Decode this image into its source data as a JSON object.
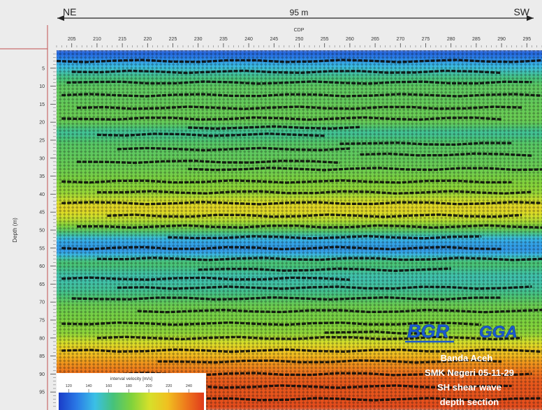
{
  "header": {
    "direction_left": "NE",
    "direction_right": "SW",
    "scale_length": "95 m"
  },
  "chart_data": {
    "type": "heatmap",
    "title": "",
    "xlabel": "CDP",
    "ylabel": "Depth (m)",
    "x_ticks": [
      205,
      210,
      215,
      220,
      225,
      230,
      235,
      240,
      245,
      250,
      255,
      260,
      265,
      270,
      275,
      280,
      285,
      290,
      295
    ],
    "x_range": [
      202,
      298
    ],
    "y_ticks": [
      5,
      10,
      15,
      20,
      25,
      30,
      35,
      40,
      45,
      50,
      55,
      60,
      65,
      70,
      75,
      80,
      85,
      90,
      95
    ],
    "y_range": [
      0,
      100
    ],
    "grid": false,
    "colorbar": {
      "label": "interval velocity [m/s]",
      "ticks": [
        120,
        140,
        160,
        180,
        200,
        220,
        240
      ],
      "range": [
        110,
        255
      ],
      "stops": [
        "#1a3cc8",
        "#2a7ae6",
        "#3bc0e6",
        "#46c27a",
        "#7fd23c",
        "#d6e02a",
        "#f0c020",
        "#ee7a1c",
        "#e03a1c"
      ]
    },
    "velocity_profile": [
      {
        "depth": 0,
        "velocity": 118
      },
      {
        "depth": 2,
        "velocity": 128
      },
      {
        "depth": 4,
        "velocity": 142
      },
      {
        "depth": 7,
        "velocity": 160
      },
      {
        "depth": 10,
        "velocity": 172
      },
      {
        "depth": 20,
        "velocity": 176
      },
      {
        "depth": 23,
        "velocity": 158
      },
      {
        "depth": 26,
        "velocity": 170
      },
      {
        "depth": 33,
        "velocity": 176
      },
      {
        "depth": 40,
        "velocity": 188
      },
      {
        "depth": 44,
        "velocity": 210
      },
      {
        "depth": 47,
        "velocity": 196
      },
      {
        "depth": 50,
        "velocity": 174
      },
      {
        "depth": 53,
        "velocity": 140
      },
      {
        "depth": 56,
        "velocity": 135
      },
      {
        "depth": 59,
        "velocity": 168
      },
      {
        "depth": 63,
        "velocity": 155
      },
      {
        "depth": 67,
        "velocity": 160
      },
      {
        "depth": 71,
        "velocity": 176
      },
      {
        "depth": 79,
        "velocity": 186
      },
      {
        "depth": 83,
        "velocity": 212
      },
      {
        "depth": 87,
        "velocity": 230
      },
      {
        "depth": 92,
        "velocity": 246
      },
      {
        "depth": 100,
        "velocity": 250
      }
    ],
    "reflectors": [
      {
        "depth": 3,
        "x0": 202,
        "x1": 298
      },
      {
        "depth": 6,
        "x0": 205,
        "x1": 290
      },
      {
        "depth": 9,
        "x0": 204,
        "x1": 296
      },
      {
        "depth": 12.5,
        "x0": 203,
        "x1": 298
      },
      {
        "depth": 16,
        "x0": 206,
        "x1": 294
      },
      {
        "depth": 19,
        "x0": 203,
        "x1": 290
      },
      {
        "depth": 21.5,
        "x0": 228,
        "x1": 262
      },
      {
        "depth": 23.5,
        "x0": 210,
        "x1": 255
      },
      {
        "depth": 26,
        "x0": 258,
        "x1": 292
      },
      {
        "depth": 27.5,
        "x0": 214,
        "x1": 260
      },
      {
        "depth": 29,
        "x0": 262,
        "x1": 296
      },
      {
        "depth": 31,
        "x0": 206,
        "x1": 258
      },
      {
        "depth": 33,
        "x0": 228,
        "x1": 298
      },
      {
        "depth": 36.5,
        "x0": 203,
        "x1": 292
      },
      {
        "depth": 39.5,
        "x0": 210,
        "x1": 296
      },
      {
        "depth": 42.5,
        "x0": 203,
        "x1": 298
      },
      {
        "depth": 46,
        "x0": 212,
        "x1": 294
      },
      {
        "depth": 49,
        "x0": 206,
        "x1": 298
      },
      {
        "depth": 52,
        "x0": 224,
        "x1": 286
      },
      {
        "depth": 55,
        "x0": 203,
        "x1": 290
      },
      {
        "depth": 58,
        "x0": 210,
        "x1": 298
      },
      {
        "depth": 61,
        "x0": 230,
        "x1": 280
      },
      {
        "depth": 63.5,
        "x0": 203,
        "x1": 260
      },
      {
        "depth": 66,
        "x0": 214,
        "x1": 296
      },
      {
        "depth": 69,
        "x0": 205,
        "x1": 290
      },
      {
        "depth": 72.5,
        "x0": 218,
        "x1": 298
      },
      {
        "depth": 76,
        "x0": 203,
        "x1": 286
      },
      {
        "depth": 78.5,
        "x0": 255,
        "x1": 275
      },
      {
        "depth": 80,
        "x0": 210,
        "x1": 294
      },
      {
        "depth": 83.5,
        "x0": 203,
        "x1": 298
      },
      {
        "depth": 86.5,
        "x0": 222,
        "x1": 290
      },
      {
        "depth": 90,
        "x0": 203,
        "x1": 296
      },
      {
        "depth": 93.5,
        "x0": 212,
        "x1": 292
      },
      {
        "depth": 97,
        "x0": 203,
        "x1": 298
      }
    ]
  },
  "logos": {
    "left": "BGR",
    "right": "GGA"
  },
  "caption": {
    "line1": "Banda Aceh",
    "line2": "SMK Negeri 05-11-29",
    "line3": "SH shear wave",
    "line4": "depth section"
  }
}
